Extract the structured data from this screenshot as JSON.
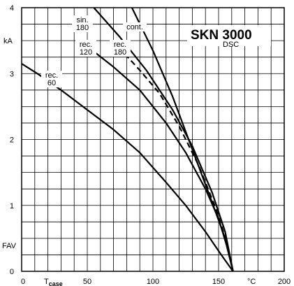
{
  "chart_data": {
    "type": "line",
    "title": "SKN 3000",
    "subtitle": "DSC",
    "ylabel": "FAV",
    "yunit": "kA",
    "xlabel_main": "T",
    "xlabel_sub": "case",
    "xunit": "°C",
    "xlim": [
      0,
      200
    ],
    "ylim": [
      0,
      4
    ],
    "grid": true,
    "x_ticks": [
      "0",
      "50",
      "100",
      "150",
      "200"
    ],
    "y_ticks": [
      "0",
      "1",
      "2",
      "3",
      "4"
    ],
    "series": [
      {
        "name": "cont.",
        "style": "solid",
        "points": [
          [
            84,
            4.0
          ],
          [
            100,
            3.35
          ],
          [
            115,
            2.65
          ],
          [
            130,
            1.85
          ],
          [
            145,
            1.05
          ],
          [
            155,
            0.5
          ],
          [
            161,
            0.0
          ]
        ]
      },
      {
        "name": "sin. 180",
        "style": "solid",
        "points": [
          [
            55,
            4.0
          ],
          [
            75,
            3.55
          ],
          [
            95,
            3.05
          ],
          [
            115,
            2.45
          ],
          [
            130,
            1.9
          ],
          [
            145,
            1.2
          ],
          [
            155,
            0.6
          ],
          [
            161,
            0.0
          ]
        ]
      },
      {
        "name": "rec. 180",
        "style": "dashed",
        "points": [
          [
            74,
            3.4
          ],
          [
            90,
            3.05
          ],
          [
            105,
            2.7
          ],
          [
            120,
            2.2
          ],
          [
            135,
            1.6
          ],
          [
            148,
            0.95
          ],
          [
            156,
            0.45
          ],
          [
            161,
            0.0
          ]
        ]
      },
      {
        "name": "rec. 120",
        "style": "solid",
        "points": [
          [
            54,
            3.35
          ],
          [
            70,
            3.1
          ],
          [
            90,
            2.75
          ],
          [
            110,
            2.25
          ],
          [
            125,
            1.8
          ],
          [
            140,
            1.25
          ],
          [
            150,
            0.8
          ],
          [
            156,
            0.4
          ],
          [
            161,
            0.0
          ]
        ]
      },
      {
        "name": "rec. 60",
        "style": "solid",
        "points": [
          [
            0,
            3.15
          ],
          [
            12,
            3.0
          ],
          [
            30,
            2.75
          ],
          [
            50,
            2.45
          ],
          [
            70,
            2.15
          ],
          [
            90,
            1.8
          ],
          [
            110,
            1.35
          ],
          [
            125,
            1.0
          ],
          [
            140,
            0.6
          ],
          [
            152,
            0.25
          ],
          [
            161,
            0.0
          ]
        ]
      }
    ],
    "labels": [
      {
        "series": "sin. 180",
        "lines": [
          "sin.",
          "180"
        ]
      },
      {
        "series": "cont.",
        "lines": [
          "cont."
        ]
      },
      {
        "series": "rec. 120",
        "lines": [
          "rec.",
          "120"
        ]
      },
      {
        "series": "rec. 180",
        "lines": [
          "rec.",
          "180"
        ]
      },
      {
        "series": "rec. 60",
        "lines": [
          "rec.",
          "60"
        ]
      }
    ]
  }
}
